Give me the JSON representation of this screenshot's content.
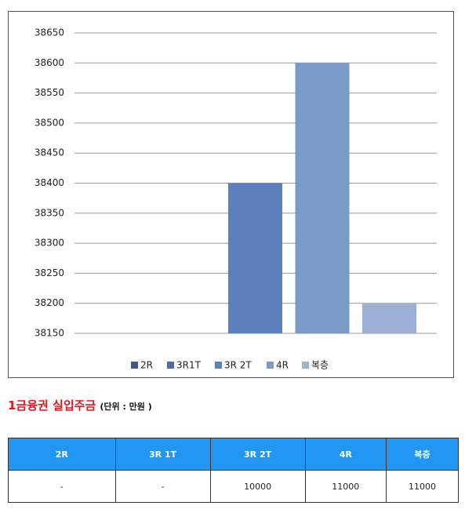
{
  "chart_data": {
    "type": "bar",
    "series": [
      {
        "name": "2R",
        "color": "#3b5c8f",
        "values": [
          null
        ]
      },
      {
        "name": "3R1T",
        "color": "#4a6daa",
        "values": [
          null
        ]
      },
      {
        "name": "3R 2T",
        "color": "#5b80bc",
        "values": [
          38400
        ]
      },
      {
        "name": "4R",
        "color": "#7a9bc7",
        "values": [
          38600
        ]
      },
      {
        "name": "복층",
        "color": "#9cb1d5",
        "values": [
          38200
        ]
      }
    ],
    "ylim": [
      38150,
      38650
    ],
    "yticks": [
      38150,
      38200,
      38250,
      38300,
      38350,
      38400,
      38450,
      38500,
      38550,
      38600,
      38650
    ],
    "grid": true,
    "legend": "bottom"
  },
  "heading": {
    "title": "1금융권 실입주금",
    "unit": "(단위 : 만원 )"
  },
  "table": {
    "header": [
      "2R",
      "3R 1T",
      "3R 2T",
      "4R",
      "복층"
    ],
    "rows": [
      [
        "-",
        "-",
        "10000",
        "11000",
        "11000"
      ]
    ]
  }
}
